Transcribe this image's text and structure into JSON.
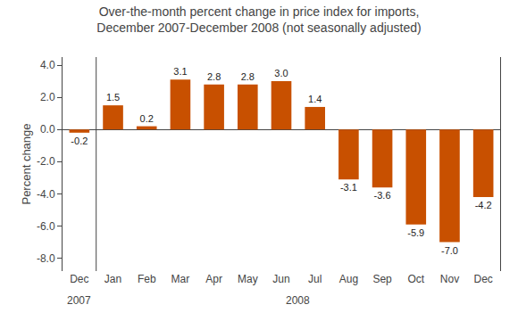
{
  "chart_data": {
    "type": "bar",
    "title": "Over-the-month percent change in price index for imports,\nDecember 2007-December 2008 (not seasonally adjusted)",
    "ylabel": "Percent change",
    "categories": [
      "Dec",
      "Jan",
      "Feb",
      "Mar",
      "Apr",
      "May",
      "Jun",
      "Jul",
      "Aug",
      "Sep",
      "Oct",
      "Nov",
      "Dec"
    ],
    "values": [
      -0.2,
      1.5,
      0.2,
      3.1,
      2.8,
      2.8,
      3.0,
      1.4,
      -3.1,
      -3.6,
      -5.9,
      -7.0,
      -4.2
    ],
    "value_labels": [
      "-0.2",
      "1.5",
      "0.2",
      "3.1",
      "2.8",
      "2.8",
      "3.0",
      "1.4",
      "-3.1",
      "-3.6",
      "-5.9",
      "-7.0",
      "-4.2"
    ],
    "color": "#C85000",
    "ylim": [
      -8.8,
      4.5
    ],
    "yticks": [
      {
        "value": -8.0,
        "label": "-8.0"
      },
      {
        "value": -6.0,
        "label": "-6.0"
      },
      {
        "value": -4.0,
        "label": "-4.0"
      },
      {
        "value": -2.0,
        "label": "-2.0"
      },
      {
        "value": 0.0,
        "label": "0.0"
      },
      {
        "value": 2.0,
        "label": "2.0"
      },
      {
        "value": 4.0,
        "label": "4.0"
      }
    ],
    "grid": false,
    "data_labels": true,
    "annotations": [
      {
        "text": "2007",
        "x": 0
      },
      {
        "text": "2008",
        "x": 6.5
      }
    ]
  }
}
